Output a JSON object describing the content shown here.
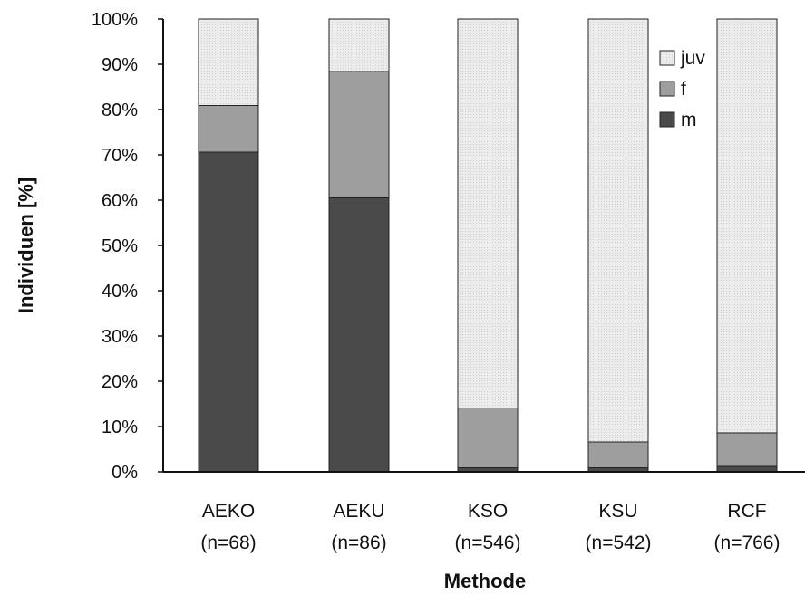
{
  "chart_data": {
    "type": "bar",
    "stacked": true,
    "xlabel": "Methode",
    "ylabel": "Individuen [%]",
    "ylim": [
      0,
      100
    ],
    "yticks": [
      "0%",
      "10%",
      "20%",
      "30%",
      "40%",
      "50%",
      "60%",
      "70%",
      "80%",
      "90%",
      "100%"
    ],
    "categories": [
      "AEKO",
      "AEKU",
      "KSO",
      "KSU",
      "RCF"
    ],
    "category_subtitles": [
      "(n=68)",
      "(n=86)",
      "(n=546)",
      "(n=542)",
      "(n=766)"
    ],
    "series": [
      {
        "name": "m",
        "color": "#4a4a4a",
        "values": [
          70.6,
          60.5,
          0.9,
          0.9,
          1.2
        ]
      },
      {
        "name": "f",
        "color": "#9e9e9e",
        "values": [
          10.3,
          27.9,
          13.2,
          5.7,
          7.4
        ]
      },
      {
        "name": "juv",
        "color": "#e9e9e9",
        "values": [
          19.1,
          11.6,
          85.9,
          93.4,
          91.4
        ]
      }
    ],
    "legend": {
      "position": "top-right",
      "order": [
        "juv",
        "f",
        "m"
      ]
    },
    "grid": false
  }
}
